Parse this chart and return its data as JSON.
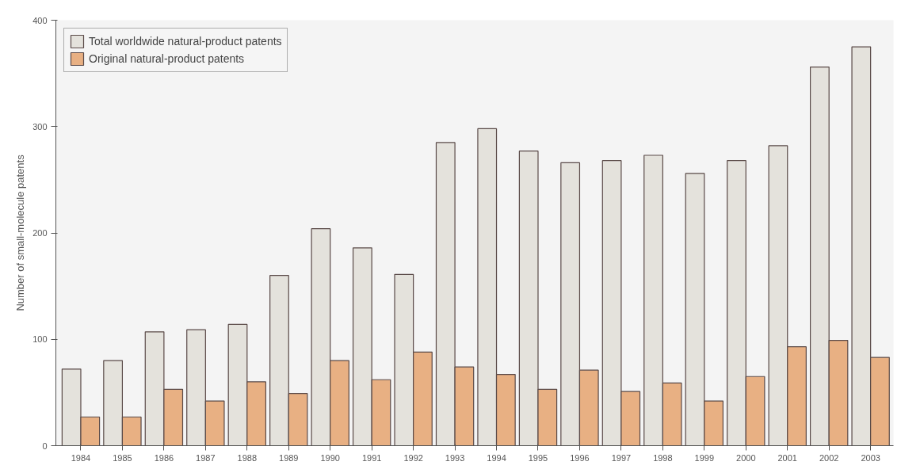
{
  "chart_data": {
    "type": "bar",
    "ylabel": "Number of small-molecule patents",
    "categories": [
      "1984",
      "1985",
      "1986",
      "1987",
      "1988",
      "1989",
      "1990",
      "1991",
      "1992",
      "1993",
      "1994",
      "1995",
      "1996",
      "1997",
      "1998",
      "1999",
      "2000",
      "2001",
      "2002",
      "2003"
    ],
    "series": [
      {
        "name": "Total worldwide natural-product patents",
        "color": "#e4e2dc",
        "values": [
          72,
          80,
          107,
          109,
          114,
          160,
          204,
          186,
          161,
          285,
          298,
          277,
          266,
          268,
          273,
          256,
          268,
          282,
          356,
          375
        ]
      },
      {
        "name": "Original natural-product patents",
        "color": "#e8b083",
        "values": [
          27,
          27,
          53,
          42,
          60,
          49,
          80,
          62,
          88,
          74,
          67,
          53,
          71,
          51,
          59,
          42,
          65,
          93,
          99,
          83
        ]
      }
    ],
    "ylim": [
      0,
      400
    ],
    "yticks": [
      0,
      100,
      200,
      300,
      400
    ],
    "grid": false,
    "legend": "top left"
  }
}
